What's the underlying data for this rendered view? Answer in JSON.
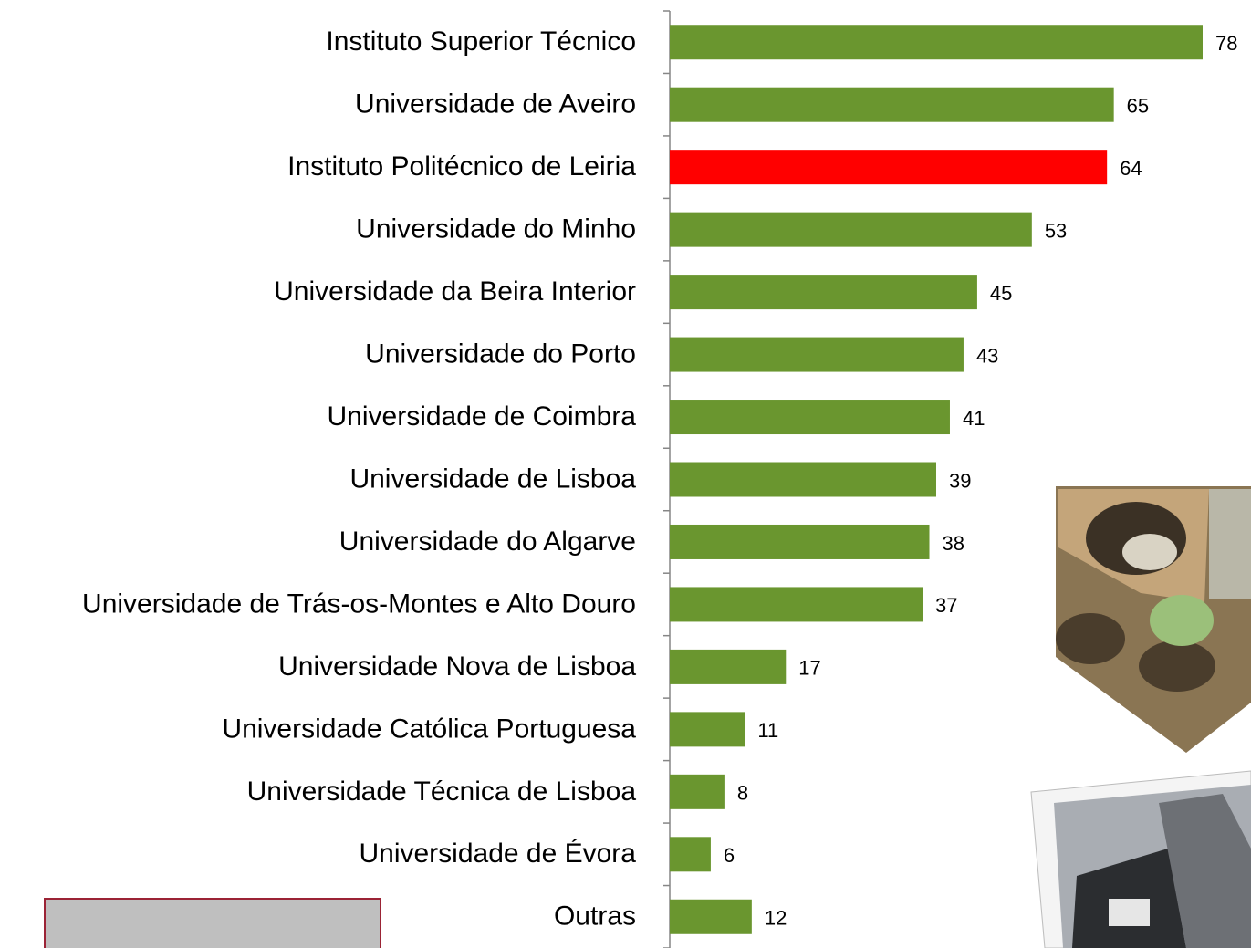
{
  "chart_data": {
    "type": "barh",
    "categories": [
      "Instituto Superior Técnico",
      "Universidade de Aveiro",
      "Instituto Politécnico de Leiria",
      "Universidade do Minho",
      "Universidade da Beira Interior",
      "Universidade do Porto",
      "Universidade de Coimbra",
      "Universidade de Lisboa",
      "Universidade do Algarve",
      "Universidade de Trás-os-Montes e Alto Douro",
      "Universidade Nova de Lisboa",
      "Universidade Católica Portuguesa",
      "Universidade Técnica de Lisboa",
      "Universidade de Évora",
      "Outras"
    ],
    "values": [
      78,
      65,
      64,
      53,
      45,
      43,
      41,
      39,
      38,
      37,
      17,
      11,
      8,
      6,
      12
    ],
    "colors": [
      "#6a962f",
      "#6a962f",
      "#ff0000",
      "#6a962f",
      "#6a962f",
      "#6a962f",
      "#6a962f",
      "#6a962f",
      "#6a962f",
      "#6a962f",
      "#6a962f",
      "#6a962f",
      "#6a962f",
      "#6a962f",
      "#6a962f"
    ],
    "xlim": [
      0,
      78
    ]
  }
}
